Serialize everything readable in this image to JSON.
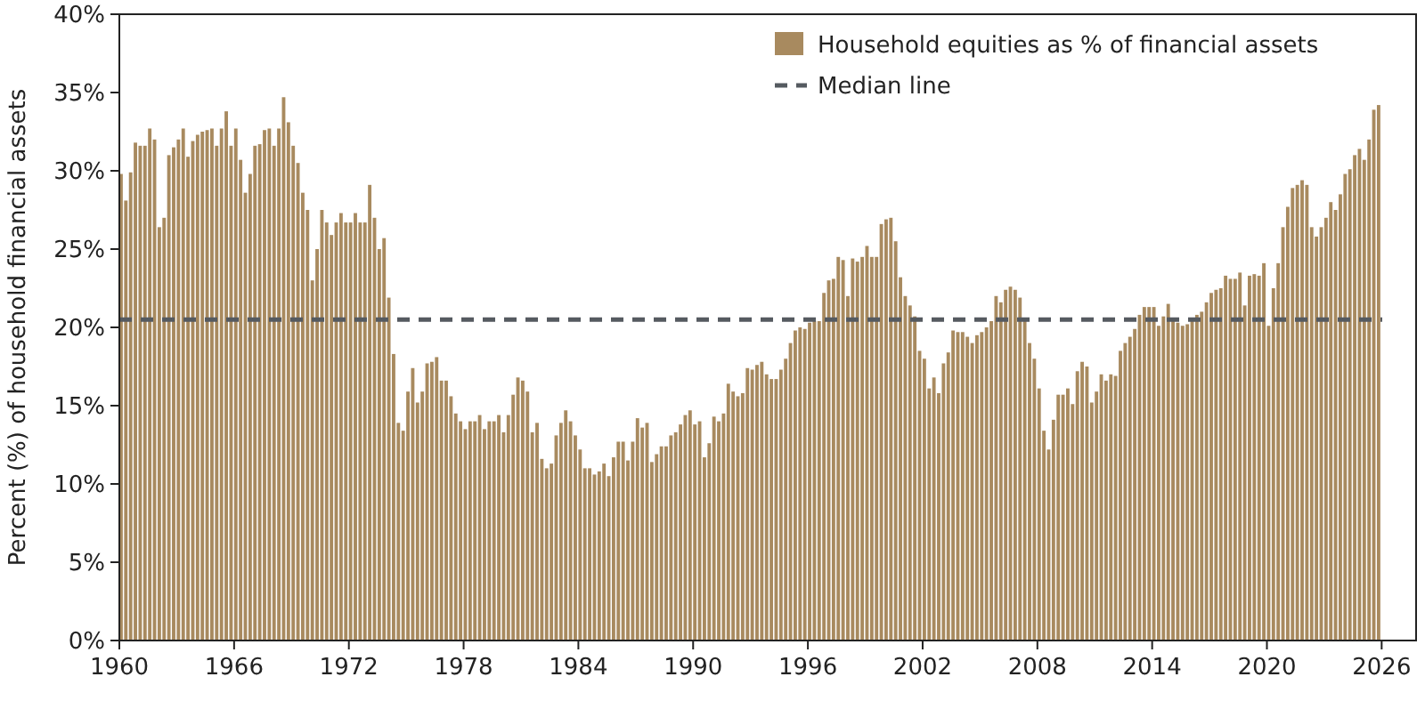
{
  "chart_data": {
    "type": "bar",
    "ylabel": "Percent (%) of household financial assets",
    "x": [
      1960,
      1960.25,
      1960.5,
      1960.75,
      1961,
      1961.25,
      1961.5,
      1961.75,
      1962,
      1962.25,
      1962.5,
      1962.75,
      1963,
      1963.25,
      1963.5,
      1963.75,
      1964,
      1964.25,
      1964.5,
      1964.75,
      1965,
      1965.25,
      1965.5,
      1965.75,
      1966,
      1966.25,
      1966.5,
      1966.75,
      1967,
      1967.25,
      1967.5,
      1967.75,
      1968,
      1968.25,
      1968.5,
      1968.75,
      1969,
      1969.25,
      1969.5,
      1969.75,
      1970,
      1970.25,
      1970.5,
      1970.75,
      1971,
      1971.25,
      1971.5,
      1971.75,
      1972,
      1972.25,
      1972.5,
      1972.75,
      1973,
      1973.25,
      1973.5,
      1973.75,
      1974,
      1974.25,
      1974.5,
      1974.75,
      1975,
      1975.25,
      1975.5,
      1975.75,
      1976,
      1976.25,
      1976.5,
      1976.75,
      1977,
      1977.25,
      1977.5,
      1977.75,
      1978,
      1978.25,
      1978.5,
      1978.75,
      1979,
      1979.25,
      1979.5,
      1979.75,
      1980,
      1980.25,
      1980.5,
      1980.75,
      1981,
      1981.25,
      1981.5,
      1981.75,
      1982,
      1982.25,
      1982.5,
      1982.75,
      1983,
      1983.25,
      1983.5,
      1983.75,
      1984,
      1984.25,
      1984.5,
      1984.75,
      1985,
      1985.25,
      1985.5,
      1985.75,
      1986,
      1986.25,
      1986.5,
      1986.75,
      1987,
      1987.25,
      1987.5,
      1987.75,
      1988,
      1988.25,
      1988.5,
      1988.75,
      1989,
      1989.25,
      1989.5,
      1989.75,
      1990,
      1990.25,
      1990.5,
      1990.75,
      1991,
      1991.25,
      1991.5,
      1991.75,
      1992,
      1992.25,
      1992.5,
      1992.75,
      1993,
      1993.25,
      1993.5,
      1993.75,
      1994,
      1994.25,
      1994.5,
      1994.75,
      1995,
      1995.25,
      1995.5,
      1995.75,
      1996,
      1996.25,
      1996.5,
      1996.75,
      1997,
      1997.25,
      1997.5,
      1997.75,
      1998,
      1998.25,
      1998.5,
      1998.75,
      1999,
      1999.25,
      1999.5,
      1999.75,
      2000,
      2000.25,
      2000.5,
      2000.75,
      2001,
      2001.25,
      2001.5,
      2001.75,
      2002,
      2002.25,
      2002.5,
      2002.75,
      2003,
      2003.25,
      2003.5,
      2003.75,
      2004,
      2004.25,
      2004.5,
      2004.75,
      2005,
      2005.25,
      2005.5,
      2005.75,
      2006,
      2006.25,
      2006.5,
      2006.75,
      2007,
      2007.25,
      2007.5,
      2007.75,
      2008,
      2008.25,
      2008.5,
      2008.75,
      2009,
      2009.25,
      2009.5,
      2009.75,
      2010,
      2010.25,
      2010.5,
      2010.75,
      2011,
      2011.25,
      2011.5,
      2011.75,
      2012,
      2012.25,
      2012.5,
      2012.75,
      2013,
      2013.25,
      2013.5,
      2013.75,
      2014,
      2014.25,
      2014.5,
      2014.75,
      2015,
      2015.25,
      2015.5,
      2015.75,
      2016,
      2016.25,
      2016.5,
      2016.75,
      2017,
      2017.25,
      2017.5,
      2017.75,
      2018,
      2018.25,
      2018.5,
      2018.75,
      2019,
      2019.25,
      2019.5,
      2019.75,
      2020,
      2020.25,
      2020.5,
      2020.75,
      2021,
      2021.25,
      2021.5,
      2021.75,
      2022,
      2022.25,
      2022.5,
      2022.75,
      2023,
      2023.25,
      2023.5,
      2023.75,
      2024,
      2024.25,
      2024.5,
      2024.75,
      2025,
      2025.25,
      2025.5,
      2025.75
    ],
    "series": [
      {
        "name": "Household equities as % of financial assets",
        "color": "#a88a5f",
        "values": [
          29.8,
          28.1,
          29.9,
          31.8,
          31.6,
          31.6,
          32.7,
          32.0,
          26.4,
          27.0,
          31.0,
          31.5,
          32.0,
          32.7,
          30.9,
          31.9,
          32.3,
          32.5,
          32.6,
          32.7,
          31.6,
          32.7,
          33.8,
          31.6,
          32.7,
          30.7,
          28.6,
          29.8,
          31.6,
          31.7,
          32.6,
          32.7,
          31.6,
          32.7,
          34.7,
          33.1,
          31.6,
          30.5,
          28.6,
          27.5,
          23.0,
          25.0,
          27.5,
          26.7,
          25.9,
          26.7,
          27.3,
          26.7,
          26.7,
          27.3,
          26.7,
          26.7,
          29.1,
          27.0,
          25.0,
          25.7,
          21.9,
          18.3,
          13.9,
          13.4,
          15.9,
          17.4,
          15.2,
          15.9,
          17.7,
          17.8,
          18.1,
          16.6,
          16.6,
          15.6,
          14.5,
          14.0,
          13.5,
          14.0,
          14.0,
          14.4,
          13.5,
          14.0,
          14.0,
          14.4,
          13.3,
          14.4,
          15.7,
          16.8,
          16.6,
          15.9,
          13.3,
          13.9,
          11.6,
          11.0,
          11.3,
          13.1,
          13.9,
          14.7,
          14.0,
          13.1,
          12.2,
          11.0,
          11.0,
          10.6,
          10.8,
          11.3,
          10.5,
          11.7,
          12.7,
          12.7,
          11.5,
          12.7,
          14.2,
          13.6,
          13.9,
          11.4,
          11.9,
          12.4,
          12.4,
          13.1,
          13.3,
          13.8,
          14.4,
          14.7,
          13.8,
          14.0,
          11.7,
          12.6,
          14.3,
          14.0,
          14.5,
          16.4,
          15.9,
          15.6,
          15.8,
          17.4,
          17.3,
          17.6,
          17.8,
          17.0,
          16.7,
          16.7,
          17.3,
          18.0,
          19.0,
          19.8,
          20.0,
          19.9,
          20.3,
          20.4,
          20.4,
          22.2,
          23.0,
          23.1,
          24.5,
          24.3,
          22.0,
          24.4,
          24.2,
          24.5,
          25.2,
          24.5,
          24.5,
          26.6,
          26.9,
          27.0,
          25.5,
          23.2,
          22.0,
          21.4,
          20.7,
          18.5,
          18.0,
          16.1,
          16.8,
          15.8,
          17.7,
          18.4,
          19.8,
          19.7,
          19.7,
          19.4,
          19.0,
          19.5,
          19.7,
          20.0,
          20.4,
          22.0,
          21.6,
          22.4,
          22.6,
          22.4,
          21.9,
          20.4,
          19.0,
          18.0,
          16.1,
          13.4,
          12.2,
          14.1,
          15.7,
          15.7,
          16.1,
          15.1,
          17.2,
          17.8,
          17.5,
          15.2,
          15.9,
          17.0,
          16.6,
          17.0,
          16.9,
          18.5,
          19.0,
          19.4,
          19.9,
          20.8,
          21.3,
          21.3,
          21.3,
          20.1,
          20.7,
          21.5,
          20.5,
          20.3,
          20.1,
          20.2,
          20.4,
          20.8,
          21.0,
          21.6,
          22.2,
          22.4,
          22.5,
          23.3,
          23.1,
          23.1,
          23.5,
          21.4,
          23.3,
          23.4,
          23.3,
          24.1,
          20.1,
          22.5,
          24.1,
          26.4,
          27.7,
          28.9,
          29.1,
          29.4,
          29.1,
          26.4,
          25.8,
          26.4,
          27.0,
          28.0,
          27.5,
          28.5,
          29.8,
          30.1,
          31.0,
          31.4,
          30.7,
          32.0,
          33.9,
          34.2
        ]
      }
    ],
    "ref_lines": [
      {
        "axis": "y",
        "value": 20.5,
        "label": "Median line",
        "color": "#555a60",
        "line_style": "dashed"
      }
    ],
    "xlim": [
      1960,
      2027.8
    ],
    "xticks": [
      1960,
      1966,
      1972,
      1978,
      1984,
      1990,
      1996,
      2002,
      2008,
      2014,
      2020,
      2026
    ],
    "ylim": [
      0,
      40
    ],
    "yticks": [
      {
        "value": 0,
        "label": "0%"
      },
      {
        "value": 5,
        "label": "5%"
      },
      {
        "value": 10,
        "label": "10%"
      },
      {
        "value": 15,
        "label": "15%"
      },
      {
        "value": 20,
        "label": "20%"
      },
      {
        "value": 25,
        "label": "25%"
      },
      {
        "value": 30,
        "label": "30%"
      },
      {
        "value": 35,
        "label": "35%"
      },
      {
        "value": 40,
        "label": "40%"
      }
    ],
    "legend": "top right"
  }
}
